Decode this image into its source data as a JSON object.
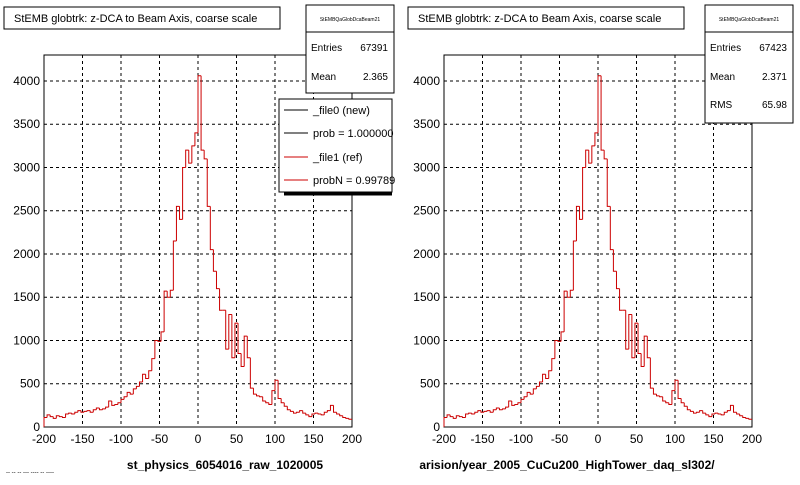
{
  "footer_text": "-- -- -- --- ---- -- ----",
  "charts": [
    {
      "title": "StEMB globtrk: z-DCA to Beam Axis, coarse scale",
      "xlabel": "st_physics_6054016_raw_1020005",
      "stats": {
        "name": "StEMBQaGlobDcaBeam21",
        "rows": [
          {
            "label": "Entries",
            "value": "67391"
          },
          {
            "label": "Mean",
            "value": "2.365"
          }
        ]
      },
      "legend": {
        "entries": [
          {
            "label": "_file0 (new)",
            "color": "#000000"
          },
          {
            "label": "prob = 1.000000",
            "color": "#000000"
          },
          {
            "label": "_file1 (ref)",
            "color": "#cc0000"
          },
          {
            "label": "probN = 0.99789",
            "color": "#cc0000"
          }
        ]
      }
    },
    {
      "title": "StEMB globtrk: z-DCA to Beam Axis, coarse scale",
      "xlabel": "arision/year_2005_CuCu200_HighTower_daq_sl302/",
      "stats": {
        "name": "StEMBQaGlobDcaBeam21",
        "rows": [
          {
            "label": "Entries",
            "value": "67423"
          },
          {
            "label": "Mean",
            "value": "2.371"
          },
          {
            "label": "RMS",
            "value": "65.98"
          }
        ]
      }
    }
  ],
  "chart_data": [
    {
      "type": "histogram",
      "xlim": [
        -200,
        200
      ],
      "ylim": [
        0,
        4300
      ],
      "xticks": [
        -200,
        -150,
        -100,
        -50,
        0,
        50,
        100,
        150,
        200
      ],
      "yticks": [
        0,
        500,
        1000,
        1500,
        2000,
        2500,
        3000,
        3500,
        4000
      ],
      "grid": true,
      "bin_width": 4,
      "values": [
        110,
        140,
        120,
        100,
        130,
        120,
        110,
        150,
        160,
        150,
        170,
        190,
        170,
        180,
        190,
        170,
        200,
        220,
        200,
        210,
        230,
        300,
        250,
        260,
        280,
        320,
        350,
        400,
        380,
        440,
        470,
        520,
        610,
        560,
        650,
        790,
        1000,
        990,
        1100,
        1570,
        1500,
        1580,
        2150,
        2550,
        2400,
        3000,
        3200,
        3050,
        3250,
        3400,
        4060,
        3200,
        3100,
        2550,
        2050,
        1800,
        1600,
        1350,
        1350,
        900,
        1300,
        800,
        1200,
        850,
        700,
        1050,
        800,
        450,
        380,
        360,
        350,
        300,
        280,
        260,
        420,
        540,
        330,
        280,
        240,
        200,
        180,
        160,
        170,
        190,
        160,
        140,
        120,
        150,
        160,
        150,
        140,
        170,
        190,
        250,
        170,
        150,
        130,
        110,
        100,
        90
      ]
    },
    {
      "type": "histogram",
      "xlim": [
        -200,
        200
      ],
      "ylim": [
        0,
        4300
      ],
      "xticks": [
        -200,
        -150,
        -100,
        -50,
        0,
        50,
        100,
        150,
        200
      ],
      "yticks": [
        0,
        500,
        1000,
        1500,
        2000,
        2500,
        3000,
        3500,
        4000
      ],
      "grid": true,
      "bin_width": 4,
      "values": [
        110,
        140,
        120,
        100,
        130,
        120,
        110,
        150,
        160,
        150,
        170,
        190,
        170,
        180,
        190,
        170,
        200,
        220,
        200,
        210,
        230,
        300,
        250,
        260,
        280,
        320,
        350,
        400,
        380,
        440,
        470,
        520,
        610,
        560,
        650,
        790,
        1000,
        990,
        1100,
        1570,
        1500,
        1580,
        2150,
        2550,
        2400,
        3000,
        3200,
        3050,
        3250,
        3400,
        4060,
        3200,
        3100,
        2550,
        2050,
        1800,
        1600,
        1350,
        1350,
        900,
        1300,
        800,
        1200,
        850,
        700,
        1050,
        800,
        450,
        380,
        360,
        350,
        300,
        280,
        260,
        420,
        540,
        330,
        280,
        240,
        200,
        180,
        160,
        170,
        190,
        160,
        140,
        120,
        150,
        160,
        150,
        140,
        170,
        190,
        250,
        170,
        150,
        130,
        110,
        100,
        90
      ]
    }
  ]
}
